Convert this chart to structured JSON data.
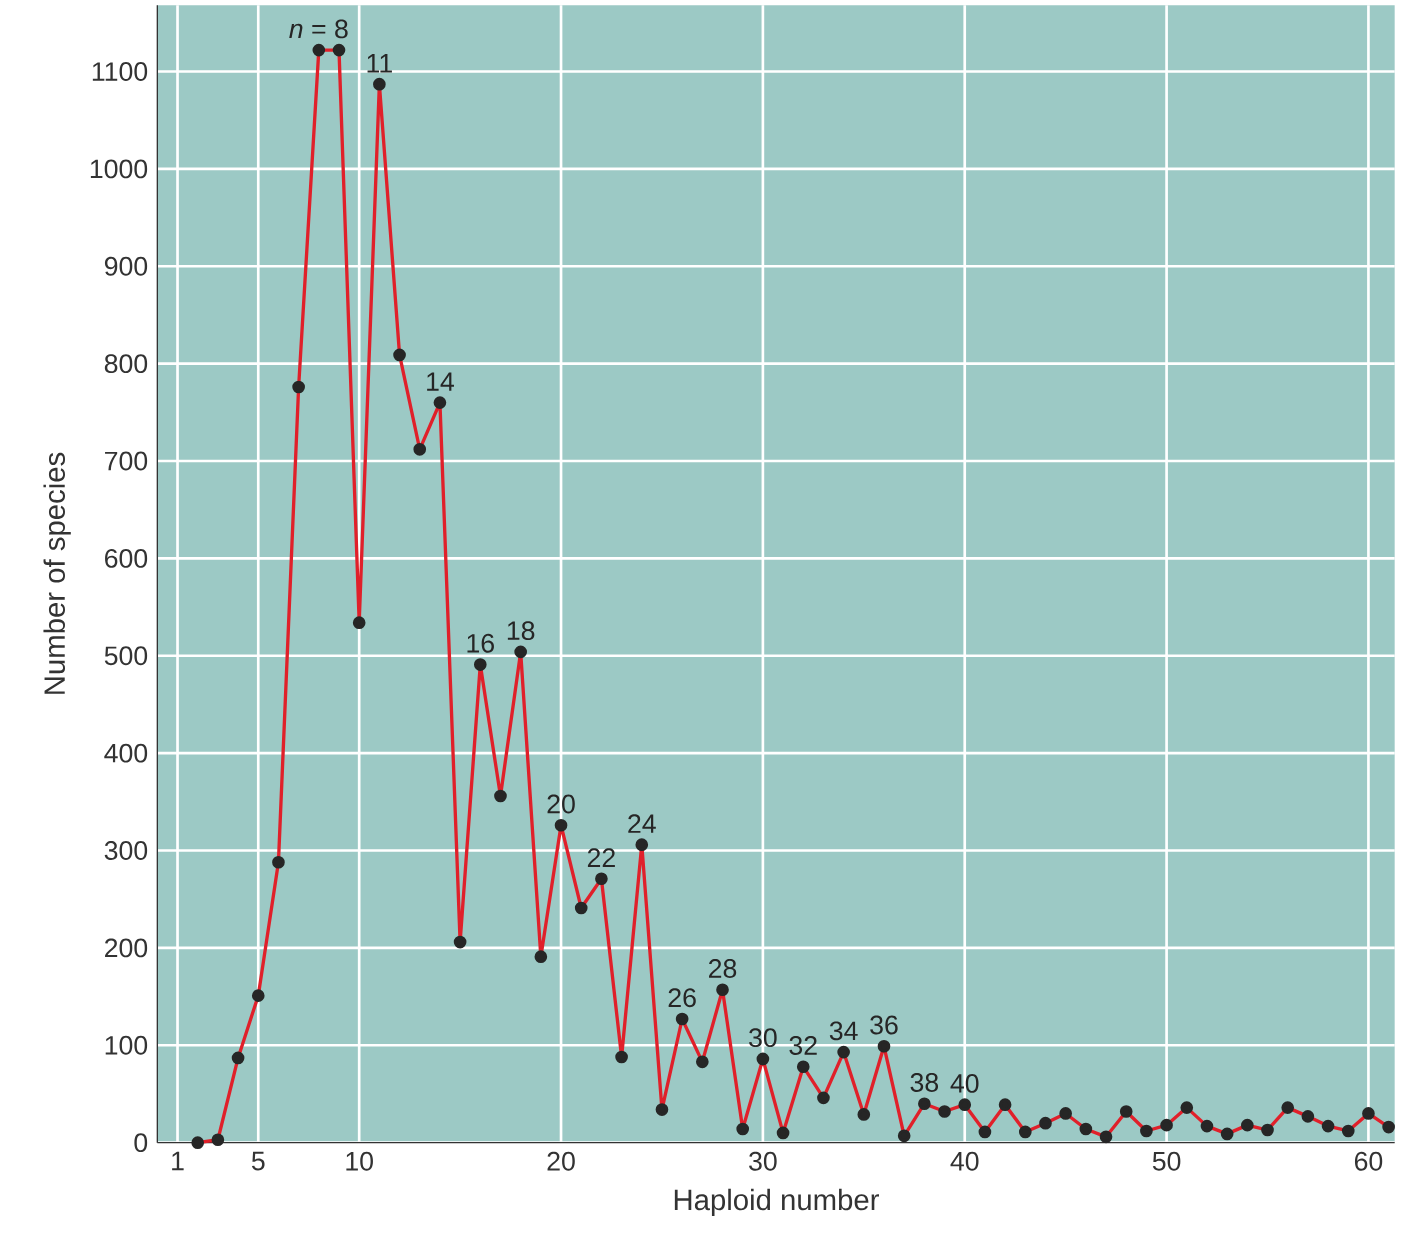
{
  "chart_data": {
    "type": "line",
    "xlabel": "Haploid number",
    "ylabel": "Number of species",
    "x": [
      2,
      3,
      4,
      5,
      6,
      7,
      8,
      9,
      10,
      11,
      12,
      13,
      14,
      15,
      16,
      17,
      18,
      19,
      20,
      21,
      22,
      23,
      24,
      25,
      26,
      27,
      28,
      29,
      30,
      31,
      32,
      33,
      34,
      35,
      36,
      37,
      38,
      39,
      40,
      41,
      42,
      43,
      44,
      45,
      46,
      47,
      48,
      49,
      50,
      51,
      52,
      53,
      54,
      55,
      56,
      57,
      58,
      59,
      60,
      61
    ],
    "values": [
      0,
      3,
      87,
      151,
      288,
      776,
      1122,
      1122,
      534,
      1087,
      809,
      712,
      760,
      206,
      491,
      356,
      504,
      191,
      326,
      241,
      271,
      88,
      306,
      34,
      127,
      83,
      157,
      14,
      86,
      10,
      78,
      46,
      93,
      29,
      99,
      7,
      40,
      32,
      39,
      11,
      39,
      11,
      20,
      30,
      14,
      6,
      32,
      12,
      18,
      36,
      17,
      9,
      18,
      13,
      36,
      27,
      17,
      12,
      30,
      16
    ],
    "color": "#e0202a",
    "marker": "circle",
    "line_style": "solid",
    "grid": true,
    "xlim": [
      0,
      61.3
    ],
    "ylim": [
      0,
      1168
    ],
    "xticks": [
      1,
      5,
      10,
      20,
      30,
      40,
      50,
      60
    ],
    "yticks": [
      0,
      100,
      200,
      300,
      400,
      500,
      600,
      700,
      800,
      900,
      1000,
      1100
    ],
    "annotations": [
      {
        "text": "*n* = 8",
        "x": 8,
        "y": 1122
      },
      {
        "text": "11",
        "x": 11,
        "y": 1087
      },
      {
        "text": "14",
        "x": 14,
        "y": 760
      },
      {
        "text": "16",
        "x": 16,
        "y": 491
      },
      {
        "text": "18",
        "x": 18,
        "y": 504
      },
      {
        "text": "20",
        "x": 20,
        "y": 326
      },
      {
        "text": "22",
        "x": 22,
        "y": 271
      },
      {
        "text": "24",
        "x": 24,
        "y": 306
      },
      {
        "text": "26",
        "x": 26,
        "y": 127
      },
      {
        "text": "28",
        "x": 28,
        "y": 157
      },
      {
        "text": "30",
        "x": 30,
        "y": 86
      },
      {
        "text": "32",
        "x": 32,
        "y": 78
      },
      {
        "text": "34",
        "x": 34,
        "y": 93
      },
      {
        "text": "36",
        "x": 36,
        "y": 99
      },
      {
        "text": "38",
        "x": 38,
        "y": 40
      },
      {
        "text": "40",
        "x": 40,
        "y": 39
      }
    ]
  }
}
